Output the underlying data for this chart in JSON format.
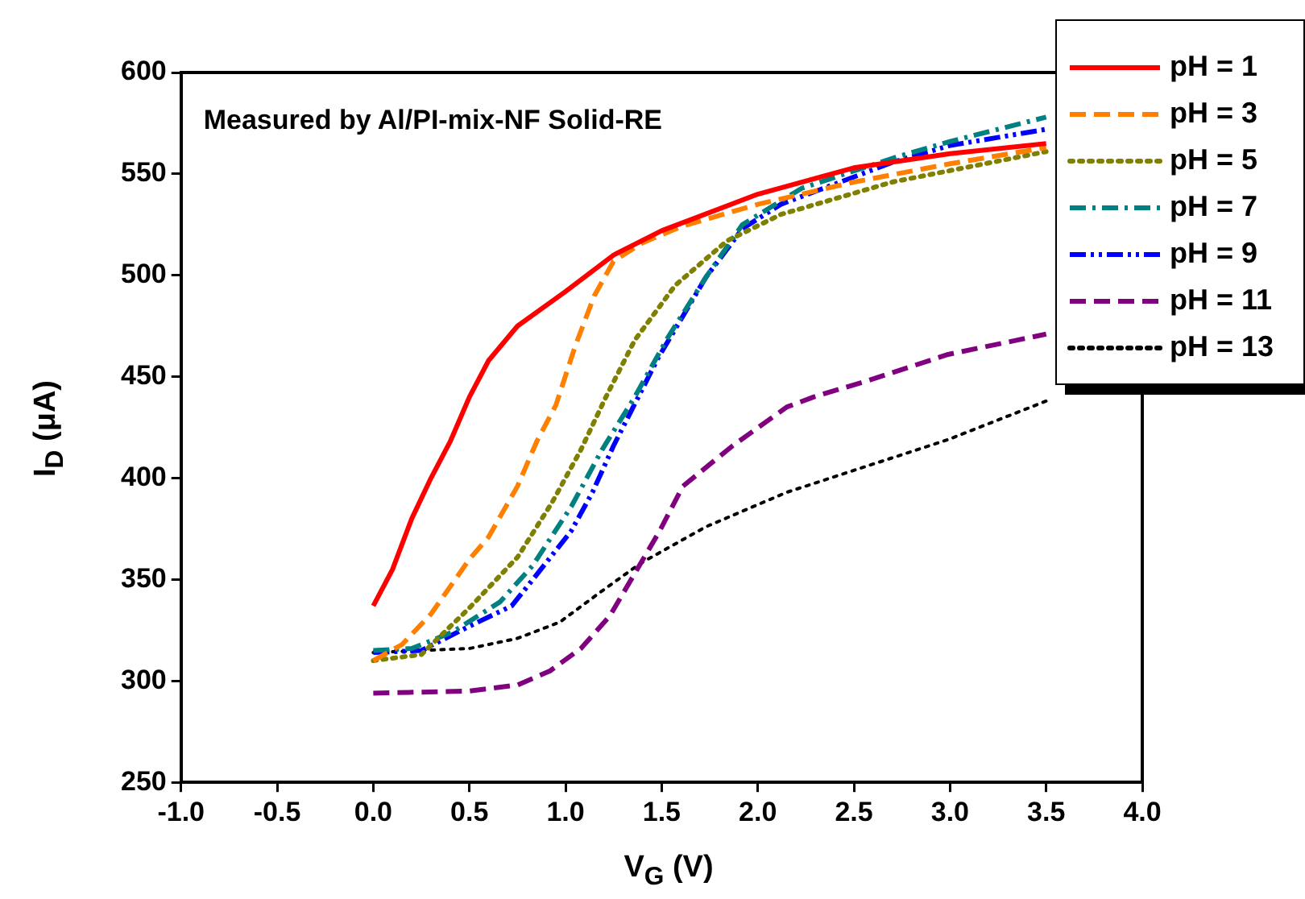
{
  "chart_data": {
    "type": "line",
    "xlabel": "V$_{G}$ (V)",
    "ylabel": "I$_{D}$ (μA)",
    "annotations": [
      "Measured by Al/PI-mix-NF Solid-RE"
    ],
    "xlim": [
      -1,
      4
    ],
    "xticks": [
      {
        "value": -1,
        "label": "-1.0"
      },
      {
        "value": -0.5,
        "label": "-0.5"
      },
      {
        "value": 0,
        "label": "0.0"
      },
      {
        "value": 0.5,
        "label": "0.5"
      },
      {
        "value": 1,
        "label": "1.0"
      },
      {
        "value": 1.5,
        "label": "1.5"
      },
      {
        "value": 2,
        "label": "2.0"
      },
      {
        "value": 2.5,
        "label": "2.5"
      },
      {
        "value": 3,
        "label": "3.0"
      },
      {
        "value": 3.5,
        "label": "3.5"
      },
      {
        "value": 4,
        "label": "4.0"
      }
    ],
    "ylim": [
      250,
      600
    ],
    "yticks": [
      250,
      300,
      350,
      400,
      450,
      500,
      550,
      600
    ],
    "grid": false,
    "legend": "top right",
    "marker": "none",
    "series": [
      {
        "name": "pH = 1",
        "color": "#ff0000",
        "line_style": "solid",
        "x": [
          0,
          0.1,
          0.2,
          0.3,
          0.4,
          0.5,
          0.6,
          0.75,
          1.0,
          1.25,
          1.5,
          2.0,
          2.5,
          3.0,
          3.5
        ],
        "values": [
          337,
          355,
          380,
          400,
          418,
          440,
          458,
          475,
          492,
          510,
          522,
          540,
          553,
          560,
          565
        ]
      },
      {
        "name": "pH = 3",
        "color": "#ff8000",
        "line_style": "dashed",
        "x": [
          0,
          0.15,
          0.3,
          0.5,
          0.6,
          0.75,
          0.85,
          0.95,
          1.05,
          1.15,
          1.25,
          1.4,
          1.6,
          2.0,
          2.5,
          3.0,
          3.5
        ],
        "values": [
          310,
          318,
          333,
          360,
          371,
          396,
          418,
          436,
          465,
          490,
          507,
          516,
          524,
          535,
          546,
          555,
          563
        ]
      },
      {
        "name": "pH = 5",
        "color": "#808000",
        "line_style": "dotted",
        "x": [
          0,
          0.25,
          0.5,
          0.75,
          0.93,
          1.08,
          1.21,
          1.36,
          1.57,
          1.84,
          2.12,
          2.7,
          3.5
        ],
        "values": [
          310,
          313,
          336,
          361,
          388,
          414,
          440,
          468,
          495,
          517,
          530,
          546,
          561
        ]
      },
      {
        "name": "pH = 7",
        "color": "#008080",
        "line_style": "dashdot",
        "x": [
          0,
          0.2,
          0.41,
          0.66,
          0.83,
          1.03,
          1.19,
          1.36,
          1.53,
          1.73,
          1.92,
          2.23,
          2.71,
          3.0,
          3.5
        ],
        "values": [
          315,
          316,
          324,
          339,
          357,
          386,
          414,
          440,
          469,
          499,
          525,
          543,
          558,
          566,
          578
        ]
      },
      {
        "name": "pH = 9",
        "color": "#0000ff",
        "line_style": "dashdotdot",
        "x": [
          0,
          0.25,
          0.5,
          0.72,
          0.83,
          1.03,
          1.14,
          1.25,
          1.48,
          1.73,
          1.92,
          2.12,
          2.71,
          3.0,
          3.5
        ],
        "values": [
          314,
          315,
          327,
          337,
          350,
          374,
          393,
          416,
          459,
          499,
          523,
          535,
          556,
          564,
          572
        ]
      },
      {
        "name": "pH = 11",
        "color": "#800080",
        "line_style": "dashed",
        "x": [
          0,
          0.5,
          0.75,
          0.92,
          1.08,
          1.23,
          1.36,
          1.49,
          1.61,
          1.87,
          2.15,
          2.29,
          2.57,
          2.99,
          3.5
        ],
        "values": [
          294,
          295,
          298,
          305,
          316,
          332,
          353,
          374,
          396,
          416,
          435,
          440,
          448,
          461,
          471
        ]
      },
      {
        "name": "pH = 13",
        "color": "#000000",
        "line_style": "dotted",
        "x": [
          0,
          0.5,
          0.75,
          0.97,
          1.17,
          1.39,
          1.73,
          2.15,
          2.57,
          2.99,
          3.5
        ],
        "values": [
          314,
          316,
          321,
          329,
          343,
          358,
          376,
          393,
          406,
          419,
          438
        ]
      }
    ]
  }
}
